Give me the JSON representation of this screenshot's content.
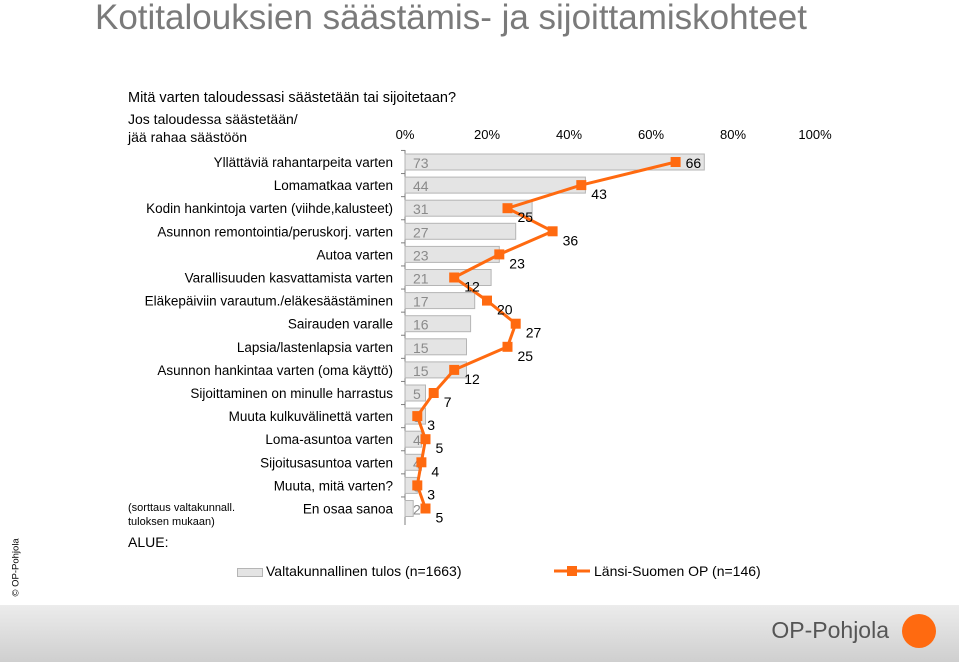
{
  "page": {
    "title": "Kotitalouksien säästämis- ja sijoittamiskohteet",
    "question": "Mitä varten taloudessasi säästetään tai sijoitetaan?",
    "row_header": "Jos taloudessa säästetään/\njää rahaa säästöön",
    "note": "(sorttaus valtakunnall.\ntuloksen mukaan)",
    "region_label": "ALUE:",
    "side_credit": "© OP-Pohjola",
    "logo_text": "OP-Pohjola"
  },
  "colors": {
    "bar_fill": "#e4e4e4",
    "bar_stroke": "#b5b5b5",
    "line": "#ff6a10",
    "axis_text": "#000000",
    "bar_label": "#8a8a8a"
  },
  "chart_data": {
    "type": "bar",
    "orientation": "horizontal",
    "x_ticks": [
      "0%",
      "20%",
      "40%",
      "60%",
      "80%",
      "100%"
    ],
    "xlim": [
      0,
      100
    ],
    "categories": [
      "Yllättäviä rahantarpeita varten",
      "Lomamatkaa varten",
      "Kodin hankintoja varten (viihde,kalusteet)",
      "Asunnon remontointia/peruskorj. varten",
      "Autoa varten",
      "Varallisuuden kasvattamista varten",
      "Eläkepäiviin varautum./eläkesäästäminen",
      "Sairauden varalle",
      "Lapsia/lastenlapsia varten",
      "Asunnon hankintaa varten (oma käyttö)",
      "Sijoittaminen on minulle harrastus",
      "Muuta kulkuvälinettä varten",
      "Loma-asuntoa varten",
      "Sijoitusasuntoa varten",
      "Muuta, mitä varten?",
      "En osaa sanoa"
    ],
    "series": [
      {
        "name": "Valtakunnallinen tulos (n=1663)",
        "kind": "bar",
        "values": [
          73,
          44,
          31,
          27,
          23,
          21,
          17,
          16,
          15,
          15,
          5,
          5,
          4,
          4,
          3,
          2
        ]
      },
      {
        "name": "Länsi-Suomen OP (n=146)",
        "kind": "line",
        "values": [
          66,
          43,
          25,
          36,
          23,
          12,
          20,
          27,
          25,
          12,
          7,
          3,
          5,
          4,
          3,
          5
        ]
      }
    ],
    "legend_position": "bottom",
    "grid": false
  }
}
